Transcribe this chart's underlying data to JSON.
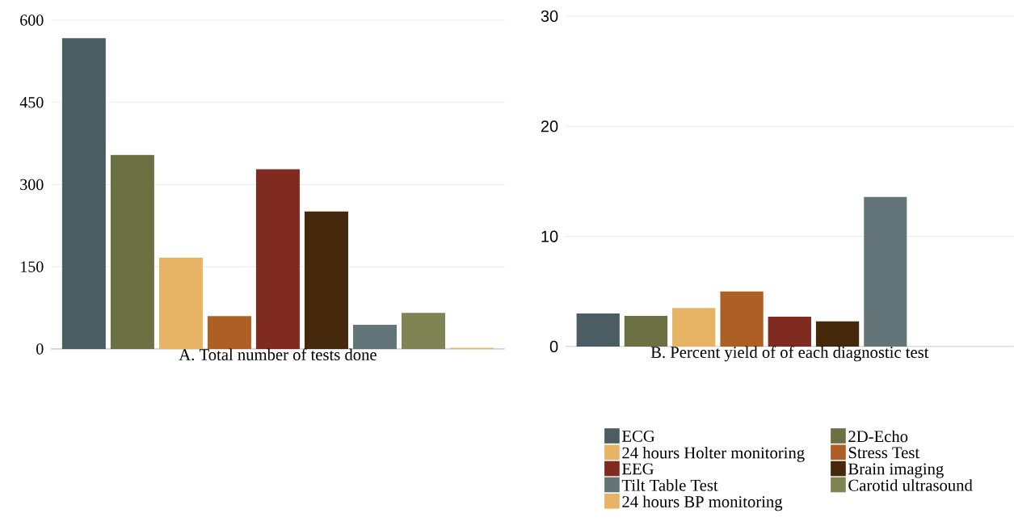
{
  "chart_data": [
    {
      "type": "bar",
      "xlabel": "A. Total number of tests done",
      "categories": [
        null
      ],
      "ylim": [
        0,
        600
      ],
      "yticks": [
        0,
        150,
        300,
        450,
        600
      ],
      "grid": "y",
      "legend": false,
      "series": [
        {
          "color": "#4b5d63",
          "values": [
            567
          ]
        },
        {
          "color": "#6c7042",
          "values": [
            354
          ]
        },
        {
          "color": "#e6b464",
          "values": [
            167
          ]
        },
        {
          "color": "#ae5f25",
          "values": [
            60
          ]
        },
        {
          "color": "#7f2b20",
          "values": [
            328
          ]
        },
        {
          "color": "#46280c",
          "values": [
            251
          ]
        },
        {
          "color": "#637578",
          "values": [
            44
          ]
        },
        {
          "color": "#808454",
          "values": [
            66
          ]
        },
        {
          "color": "#e6b464",
          "values": [
            2
          ]
        }
      ]
    },
    {
      "type": "bar",
      "xlabel": "B. Percent yield of of each diagnostic test",
      "categories": [
        null
      ],
      "ylim": [
        0,
        30
      ],
      "yticks": [
        0,
        10,
        20,
        30
      ],
      "grid": "y",
      "legend": "bottom",
      "series": [
        {
          "name": "ECG",
          "color": "#4b5d63",
          "values": [
            3.0
          ]
        },
        {
          "name": "2D-Echo",
          "color": "#6c7042",
          "values": [
            2.8
          ]
        },
        {
          "name": "24 hours Holter monitoring",
          "color": "#e6b464",
          "values": [
            3.5
          ]
        },
        {
          "name": "Stress Test",
          "color": "#ae5f25",
          "values": [
            5.0
          ]
        },
        {
          "name": "EEG",
          "color": "#7f2b20",
          "values": [
            2.7
          ]
        },
        {
          "name": "Brain imaging",
          "color": "#46280c",
          "values": [
            2.3
          ]
        },
        {
          "name": "Tilt Table Test",
          "color": "#637578",
          "values": [
            13.6
          ]
        },
        {
          "name": "Carotid ultrasound",
          "color": "#808454",
          "values": [
            0
          ]
        },
        {
          "name": "24 hours BP monitoring",
          "color": "#e6b464",
          "values": [
            0
          ]
        }
      ]
    }
  ]
}
